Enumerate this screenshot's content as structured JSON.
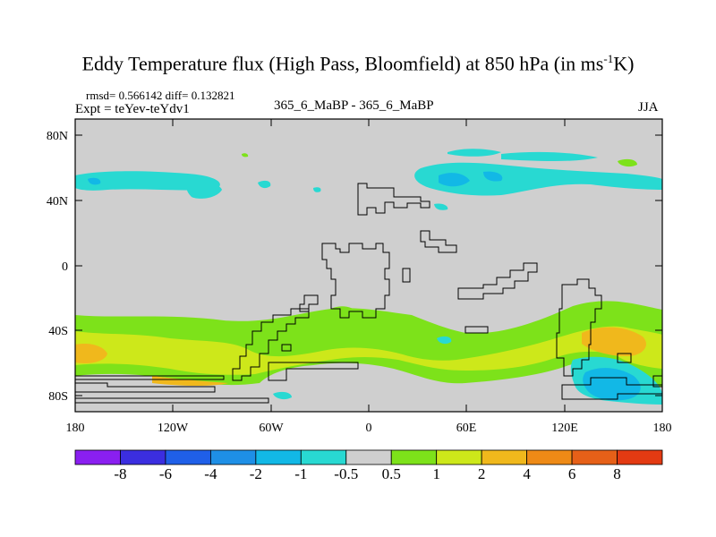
{
  "title": {
    "main": "Eddy Temperature flux (High Pass, Bloomfield) at 850 hPa (in ms",
    "sup": "-1",
    "end": "K)"
  },
  "stats": {
    "rmsd_diff": "rmsd= 0.566142 diff= 0.132821",
    "expt": "Expt = teYev-teYdv1",
    "case": "365_6_MaBP - 365_6_MaBP",
    "season": "JJA"
  },
  "axes": {
    "x_ticks": [
      "180",
      "120W",
      "60W",
      "0",
      "60E",
      "120E",
      "180"
    ],
    "y_ticks": [
      "80N",
      "40N",
      "0",
      "40S",
      "80S"
    ]
  },
  "colorbar": {
    "labels": [
      "-8",
      "-6",
      "-4",
      "-2",
      "-1",
      "-0.5",
      "0.5",
      "1",
      "2",
      "4",
      "6",
      "8"
    ],
    "colors": [
      "#8a1ff0",
      "#3b2ee0",
      "#1f5fe8",
      "#1e8fe6",
      "#12b8e6",
      "#28d9d2",
      "#cfcfcf",
      "#7de21a",
      "#cde81a",
      "#f0b81c",
      "#ee8a16",
      "#e66018",
      "#e33a12"
    ]
  },
  "colors": {
    "background_field": "#cfcfcf",
    "cyan_light": "#28d9d2",
    "cyan_mid": "#12b8e6",
    "blue_mid": "#1e8fe6",
    "green": "#7de21a",
    "yellow": "#cde81a",
    "orange": "#f0b81c"
  }
}
